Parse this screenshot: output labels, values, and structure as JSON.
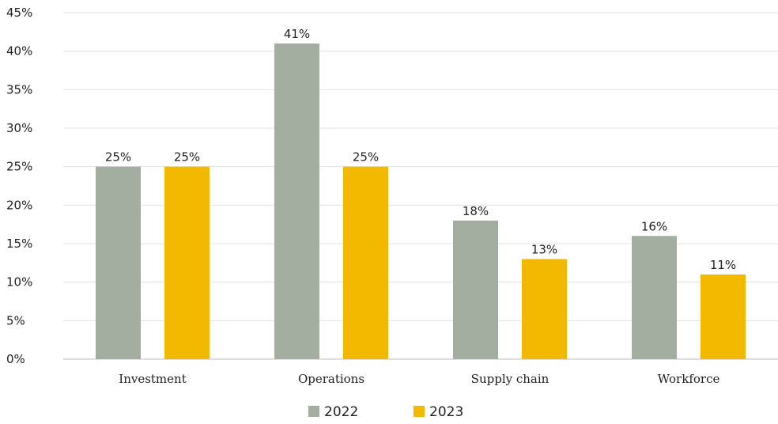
{
  "chart_data": {
    "type": "bar",
    "title": "",
    "xlabel": "",
    "ylabel": "",
    "categories": [
      "Investment",
      "Operations",
      "Supply chain",
      "Workforce"
    ],
    "series": [
      {
        "name": "2022",
        "values": [
          25,
          41,
          18,
          16
        ],
        "color": "#a3ada0"
      },
      {
        "name": "2023",
        "values": [
          25,
          25,
          13,
          11
        ],
        "color": "#f2b900"
      }
    ],
    "ylim": [
      0,
      45
    ],
    "yticks": [
      0,
      5,
      10,
      15,
      20,
      25,
      30,
      35,
      40,
      45
    ],
    "ytick_labels": [
      "0%",
      "5%",
      "10%",
      "15%",
      "20%",
      "25%",
      "30%",
      "35%",
      "40%",
      "45%"
    ],
    "data_labels": [
      [
        "25%",
        "41%",
        "18%",
        "16%"
      ],
      [
        "25%",
        "25%",
        "13%",
        "11%"
      ]
    ],
    "grid": true,
    "legend_position": "bottom"
  }
}
